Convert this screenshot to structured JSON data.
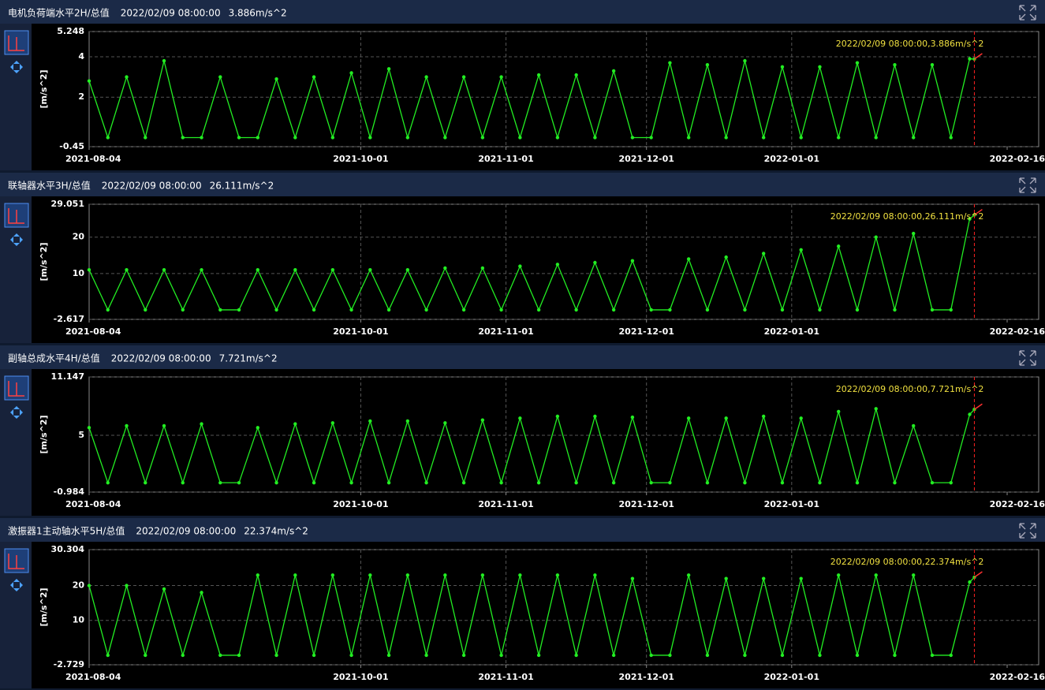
{
  "chart_data": [
    {
      "type": "line",
      "title": "电机负荷端水平2H/总值",
      "timestamp": "2022/02/09 08:00:00",
      "current_value": "3.886m/s^2",
      "annotation": "2022/02/09 08:00:00,3.886m/s^2",
      "ylabel": "[m/s^2]",
      "color": "#22ee22",
      "grid": true,
      "x": [
        "2021-08-04",
        "2021-08-08",
        "2021-08-12",
        "2021-08-16",
        "2021-08-20",
        "2021-08-24",
        "2021-08-28",
        "2021-09-01",
        "2021-09-05",
        "2021-09-09",
        "2021-09-13",
        "2021-09-17",
        "2021-09-21",
        "2021-09-25",
        "2021-09-29",
        "2021-10-03",
        "2021-10-07",
        "2021-10-11",
        "2021-10-15",
        "2021-10-19",
        "2021-10-23",
        "2021-10-27",
        "2021-10-31",
        "2021-11-04",
        "2021-11-08",
        "2021-11-12",
        "2021-11-16",
        "2021-11-20",
        "2021-11-24",
        "2021-11-28",
        "2021-12-02",
        "2021-12-06",
        "2021-12-10",
        "2021-12-14",
        "2021-12-18",
        "2021-12-22",
        "2021-12-26",
        "2021-12-30",
        "2022-01-03",
        "2022-01-07",
        "2022-01-11",
        "2022-01-15",
        "2022-01-19",
        "2022-01-23",
        "2022-01-27",
        "2022-01-31",
        "2022-02-04",
        "2022-02-08",
        "2022-02-09"
      ],
      "values": [
        2.8,
        0,
        3.0,
        0,
        3.8,
        0,
        0,
        3.0,
        0,
        0,
        2.9,
        0,
        3.0,
        0,
        3.2,
        0,
        3.4,
        0,
        3.0,
        0,
        3.0,
        0,
        3.0,
        0,
        3.1,
        0,
        3.1,
        0,
        3.3,
        0,
        0,
        3.7,
        0,
        3.6,
        0,
        3.8,
        0,
        3.5,
        0,
        3.5,
        0,
        3.7,
        0,
        3.6,
        0,
        3.6,
        0,
        3.9,
        3.886
      ],
      "xlim": [
        "2021-08-04",
        "2022-02-16"
      ],
      "xticks": [
        "2021-08-04",
        "2021-10-01",
        "2021-11-01",
        "2021-12-01",
        "2022-01-01",
        "2022-02-16"
      ],
      "ylim": [
        -0.45,
        5.248
      ],
      "yticks": [
        -0.45,
        2,
        4,
        5.248
      ]
    },
    {
      "type": "line",
      "title": "联轴器水平3H/总值",
      "timestamp": "2022/02/09 08:00:00",
      "current_value": "26.111m/s^2",
      "annotation": "2022/02/09 08:00:00,26.111m/s^2",
      "ylabel": "[m/s^2]",
      "color": "#22ee22",
      "grid": true,
      "x": [
        "2021-08-04",
        "2021-08-08",
        "2021-08-12",
        "2021-08-16",
        "2021-08-20",
        "2021-08-24",
        "2021-08-28",
        "2021-09-01",
        "2021-09-05",
        "2021-09-09",
        "2021-09-13",
        "2021-09-17",
        "2021-09-21",
        "2021-09-25",
        "2021-09-29",
        "2021-10-03",
        "2021-10-07",
        "2021-10-11",
        "2021-10-15",
        "2021-10-19",
        "2021-10-23",
        "2021-10-27",
        "2021-10-31",
        "2021-11-04",
        "2021-11-08",
        "2021-11-12",
        "2021-11-16",
        "2021-11-20",
        "2021-11-24",
        "2021-11-28",
        "2021-12-02",
        "2021-12-06",
        "2021-12-10",
        "2021-12-14",
        "2021-12-18",
        "2021-12-22",
        "2021-12-26",
        "2021-12-30",
        "2022-01-03",
        "2022-01-07",
        "2022-01-11",
        "2022-01-15",
        "2022-01-19",
        "2022-01-23",
        "2022-01-27",
        "2022-01-31",
        "2022-02-04",
        "2022-02-08",
        "2022-02-09"
      ],
      "values": [
        11,
        0,
        11,
        0,
        11,
        0,
        11,
        0,
        0,
        11,
        0,
        11,
        0,
        11,
        0,
        11,
        0,
        11,
        0,
        11.5,
        0,
        11.5,
        0,
        12,
        0,
        12.5,
        0,
        13,
        0,
        13.5,
        0,
        0,
        14,
        0,
        14.5,
        0,
        15.5,
        0,
        16.5,
        0,
        17.5,
        0,
        20,
        0,
        21,
        0,
        0,
        25,
        26.111
      ],
      "xlim": [
        "2021-08-04",
        "2022-02-16"
      ],
      "xticks": [
        "2021-08-04",
        "2021-10-01",
        "2021-11-01",
        "2021-12-01",
        "2022-01-01",
        "2022-02-16"
      ],
      "ylim": [
        -2.617,
        29.051
      ],
      "yticks": [
        -2.617,
        10,
        20,
        29.051
      ]
    },
    {
      "type": "line",
      "title": "副轴总成水平4H/总值",
      "timestamp": "2022/02/09 08:00:00",
      "current_value": "7.721m/s^2",
      "annotation": "2022/02/09 08:00:00,7.721m/s^2",
      "ylabel": "[m/s^2]",
      "color": "#22ee22",
      "grid": true,
      "x": [
        "2021-08-04",
        "2021-08-08",
        "2021-08-12",
        "2021-08-16",
        "2021-08-20",
        "2021-08-24",
        "2021-08-28",
        "2021-09-01",
        "2021-09-05",
        "2021-09-09",
        "2021-09-13",
        "2021-09-17",
        "2021-09-21",
        "2021-09-25",
        "2021-09-29",
        "2021-10-03",
        "2021-10-07",
        "2021-10-11",
        "2021-10-15",
        "2021-10-19",
        "2021-10-23",
        "2021-10-27",
        "2021-10-31",
        "2021-11-04",
        "2021-11-08",
        "2021-11-12",
        "2021-11-16",
        "2021-11-20",
        "2021-11-24",
        "2021-11-28",
        "2021-12-02",
        "2021-12-06",
        "2021-12-10",
        "2021-12-14",
        "2021-12-18",
        "2021-12-22",
        "2021-12-26",
        "2021-12-30",
        "2022-01-03",
        "2022-01-07",
        "2022-01-11",
        "2022-01-15",
        "2022-01-19",
        "2022-01-23",
        "2022-01-27",
        "2022-01-31",
        "2022-02-04",
        "2022-02-08",
        "2022-02-09"
      ],
      "values": [
        5.8,
        0,
        6,
        0,
        6,
        0,
        6.2,
        0,
        0,
        5.8,
        0,
        6.2,
        0,
        6.3,
        0,
        6.5,
        0,
        6.5,
        0,
        6.3,
        0,
        6.6,
        0,
        6.8,
        0,
        7,
        0,
        7,
        0,
        6.9,
        0,
        0,
        6.8,
        0,
        6.8,
        0,
        7,
        0,
        6.8,
        0,
        7.5,
        0,
        7.8,
        0,
        6,
        0,
        0,
        7.2,
        7.721
      ],
      "xlim": [
        "2021-08-04",
        "2022-02-16"
      ],
      "xticks": [
        "2021-08-04",
        "2021-10-01",
        "2021-11-01",
        "2021-12-01",
        "2022-01-01",
        "2022-02-16"
      ],
      "ylim": [
        -0.984,
        11.147
      ],
      "yticks": [
        -0.984,
        5,
        11.147
      ]
    },
    {
      "type": "line",
      "title": "激振器1主动轴水平5H/总值",
      "timestamp": "2022/02/09 08:00:00",
      "current_value": "22.374m/s^2",
      "annotation": "2022/02/09 08:00:00,22.374m/s^2",
      "ylabel": "[m/s^2]",
      "color": "#22ee22",
      "grid": true,
      "x": [
        "2021-08-04",
        "2021-08-08",
        "2021-08-12",
        "2021-08-16",
        "2021-08-20",
        "2021-08-24",
        "2021-08-28",
        "2021-09-01",
        "2021-09-05",
        "2021-09-09",
        "2021-09-13",
        "2021-09-17",
        "2021-09-21",
        "2021-09-25",
        "2021-09-29",
        "2021-10-03",
        "2021-10-07",
        "2021-10-11",
        "2021-10-15",
        "2021-10-19",
        "2021-10-23",
        "2021-10-27",
        "2021-10-31",
        "2021-11-04",
        "2021-11-08",
        "2021-11-12",
        "2021-11-16",
        "2021-11-20",
        "2021-11-24",
        "2021-11-28",
        "2021-12-02",
        "2021-12-06",
        "2021-12-10",
        "2021-12-14",
        "2021-12-18",
        "2021-12-22",
        "2021-12-26",
        "2021-12-30",
        "2022-01-03",
        "2022-01-07",
        "2022-01-11",
        "2022-01-15",
        "2022-01-19",
        "2022-01-23",
        "2022-01-27",
        "2022-01-31",
        "2022-02-04",
        "2022-02-08",
        "2022-02-09"
      ],
      "values": [
        20,
        0,
        20,
        0,
        19,
        0,
        18,
        0,
        0,
        23,
        0,
        23,
        0,
        23,
        0,
        23,
        0,
        23,
        0,
        23,
        0,
        23,
        0,
        23,
        0,
        23,
        0,
        23,
        0,
        22,
        0,
        0,
        23,
        0,
        22,
        0,
        22,
        0,
        22,
        0,
        23,
        0,
        23,
        0,
        23,
        0,
        0,
        21,
        22.374
      ],
      "xlim": [
        "2021-08-04",
        "2022-02-16"
      ],
      "xticks": [
        "2021-08-04",
        "2021-10-01",
        "2021-11-01",
        "2021-12-01",
        "2022-01-01",
        "2022-02-16"
      ],
      "ylim": [
        -2.729,
        30.304
      ],
      "yticks": [
        -2.729,
        10,
        20,
        30.304
      ]
    }
  ]
}
